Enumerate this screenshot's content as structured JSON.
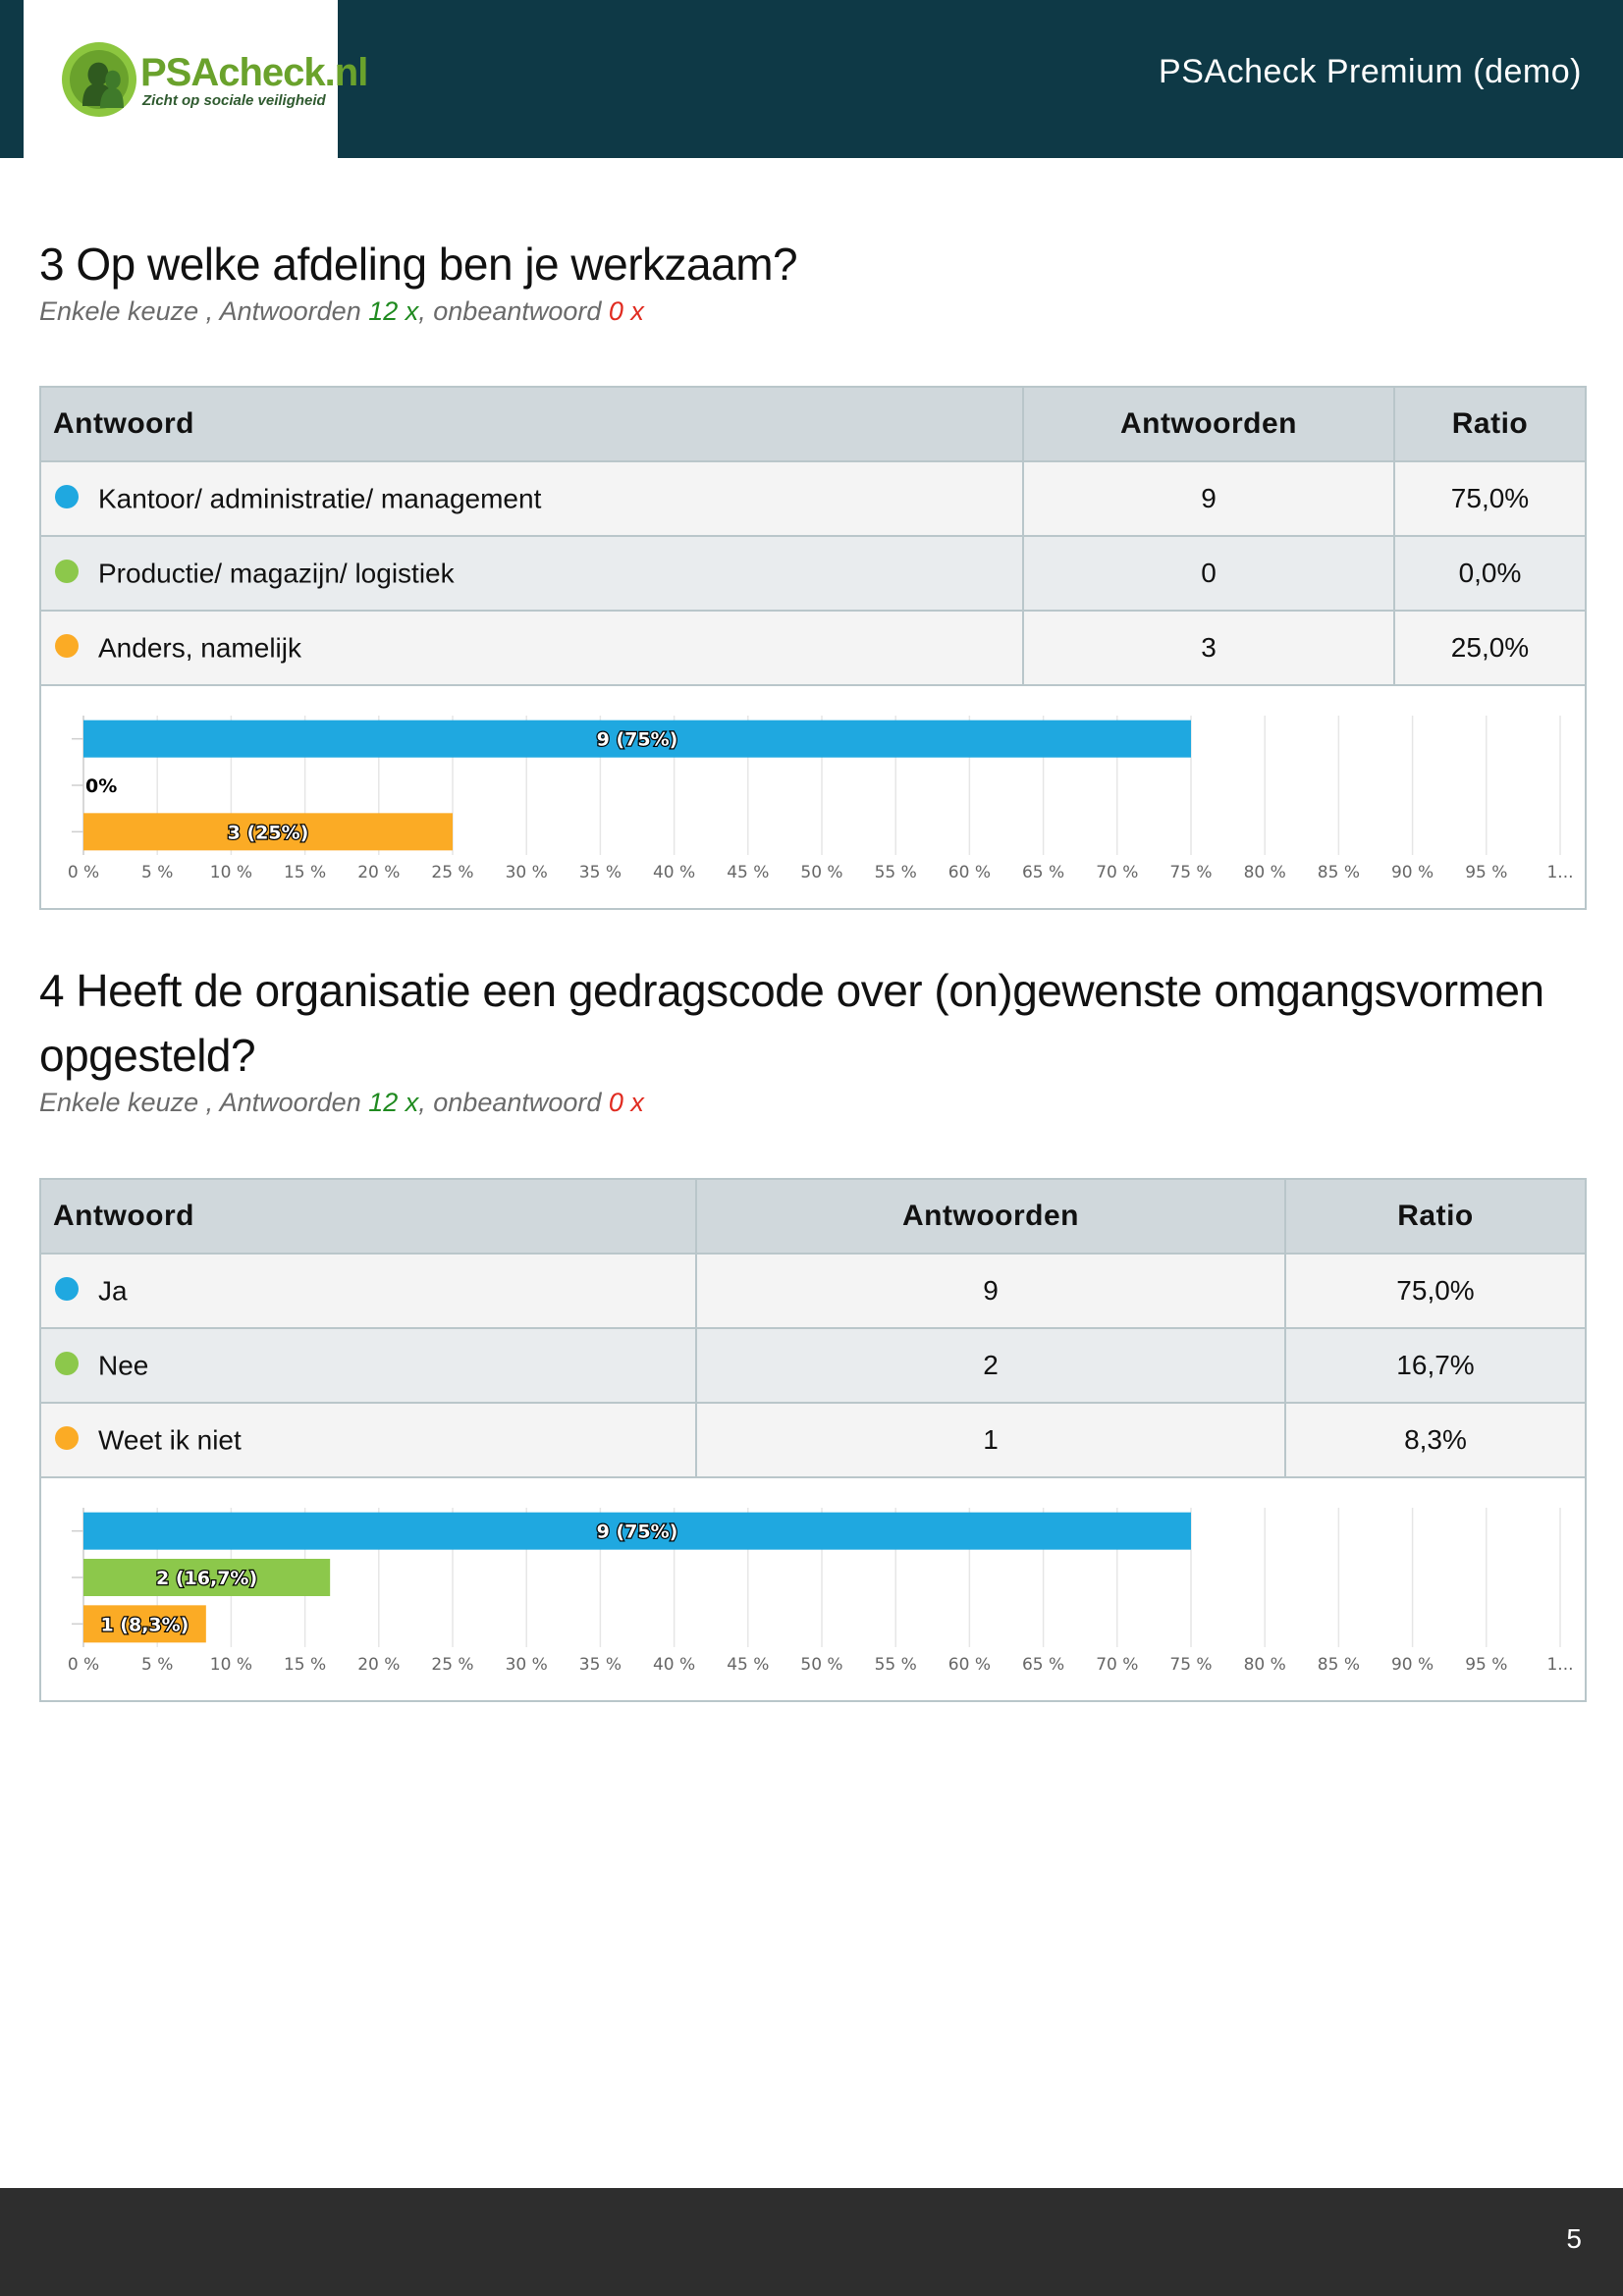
{
  "header": {
    "logo_name": "PSAcheck",
    "logo_tld": ".nl",
    "logo_tagline": "Zicht op sociale veiligheid",
    "title": "PSAcheck Premium (demo)"
  },
  "questions": [
    {
      "title": "3 Op welke afdeling ben je werkzaam?",
      "meta_type": "Enkele keuze , Antwoorden ",
      "meta_answered": "12 x",
      "meta_sep": ", onbeantwoord ",
      "meta_unanswered": "0 x",
      "col_answer": "Antwoord",
      "col_count": "Antwoorden",
      "col_ratio": "Ratio",
      "rows": [
        {
          "label": "Kantoor/ administratie/ management",
          "count": "9",
          "ratio": "75,0%",
          "color": "#1fa8e0"
        },
        {
          "label": "Productie/ magazijn/ logistiek",
          "count": "0",
          "ratio": "0,0%",
          "color": "#8cc84b"
        },
        {
          "label": "Anders, namelijk",
          "count": "3",
          "ratio": "25,0%",
          "color": "#fbab25"
        }
      ]
    },
    {
      "title": "4 Heeft de organisatie een gedragscode over (on)gewenste omgangsvormen opgesteld?",
      "meta_type": "Enkele keuze , Antwoorden ",
      "meta_answered": "12 x",
      "meta_sep": ", onbeantwoord ",
      "meta_unanswered": "0 x",
      "col_answer": "Antwoord",
      "col_count": "Antwoorden",
      "col_ratio": "Ratio",
      "rows": [
        {
          "label": "Ja",
          "count": "9",
          "ratio": "75,0%",
          "color": "#1fa8e0"
        },
        {
          "label": "Nee",
          "count": "2",
          "ratio": "16,7%",
          "color": "#8cc84b"
        },
        {
          "label": "Weet ik niet",
          "count": "1",
          "ratio": "8,3%",
          "color": "#fbab25"
        }
      ]
    }
  ],
  "chart_data": [
    {
      "type": "bar",
      "orientation": "horizontal",
      "categories": [
        "Kantoor/ administratie/ management",
        "Productie/ magazijn/ logistiek",
        "Anders, namelijk"
      ],
      "values": [
        75,
        0,
        25
      ],
      "data_labels": [
        "9 (75%)",
        "0%",
        "3 (25%)"
      ],
      "colors": [
        "#1fa8e0",
        "#8cc84b",
        "#fbab25"
      ],
      "xlim": [
        0,
        100
      ],
      "x_ticks": [
        "0 %",
        "5 %",
        "10 %",
        "15 %",
        "20 %",
        "25 %",
        "30 %",
        "35 %",
        "40 %",
        "45 %",
        "50 %",
        "55 %",
        "60 %",
        "65 %",
        "70 %",
        "75 %",
        "80 %",
        "85 %",
        "90 %",
        "95 %",
        "1..."
      ],
      "grid": true
    },
    {
      "type": "bar",
      "orientation": "horizontal",
      "categories": [
        "Ja",
        "Nee",
        "Weet ik niet"
      ],
      "values": [
        75,
        16.7,
        8.3
      ],
      "data_labels": [
        "9 (75%)",
        "2 (16,7%)",
        "1 (8,3%)"
      ],
      "colors": [
        "#1fa8e0",
        "#8cc84b",
        "#fbab25"
      ],
      "xlim": [
        0,
        100
      ],
      "x_ticks": [
        "0 %",
        "5 %",
        "10 %",
        "15 %",
        "20 %",
        "25 %",
        "30 %",
        "35 %",
        "40 %",
        "45 %",
        "50 %",
        "55 %",
        "60 %",
        "65 %",
        "70 %",
        "75 %",
        "80 %",
        "85 %",
        "90 %",
        "95 %",
        "1..."
      ],
      "grid": true
    }
  ],
  "footer": {
    "page_number": "5"
  }
}
